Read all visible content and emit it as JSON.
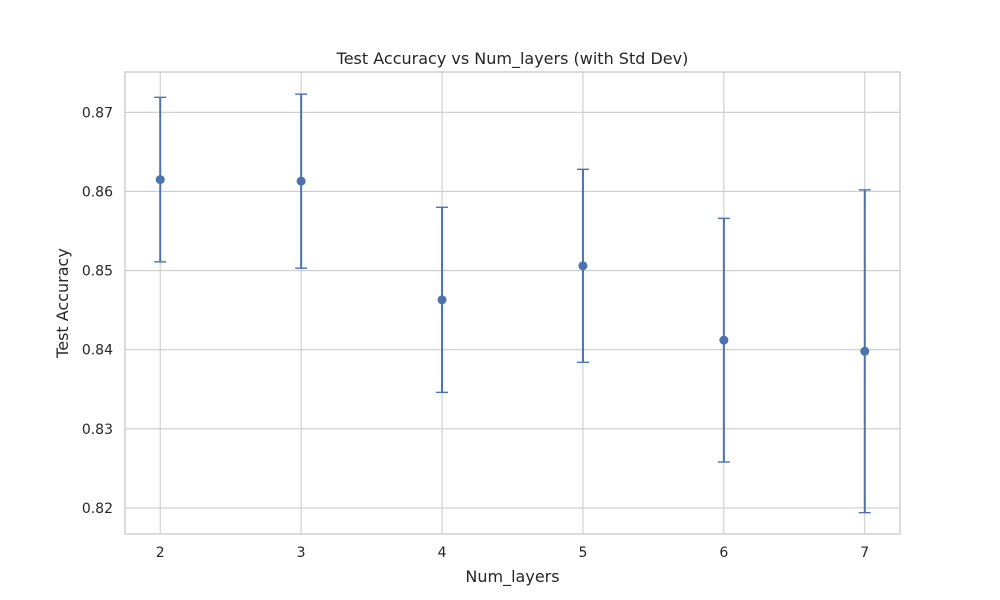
{
  "chart_data": {
    "type": "scatter",
    "title": "Test Accuracy vs Num_layers (with Std Dev)",
    "xlabel": "Num_layers",
    "ylabel": "Test Accuracy",
    "x": [
      2,
      3,
      4,
      5,
      6,
      7
    ],
    "x_ticks": [
      "2",
      "3",
      "4",
      "5",
      "6",
      "7"
    ],
    "y_ticks": [
      "0.82",
      "0.83",
      "0.84",
      "0.85",
      "0.86",
      "0.87"
    ],
    "xlim": [
      1.75,
      7.25
    ],
    "ylim": [
      0.8167,
      0.8751
    ],
    "grid": true,
    "series": [
      {
        "y": [
          0.8615,
          0.8613,
          0.8463,
          0.8506,
          0.8412,
          0.8398
        ],
        "std": [
          0.0104,
          0.011,
          0.0117,
          0.0122,
          0.0154,
          0.0204
        ],
        "color": "#4c72b0"
      }
    ]
  }
}
